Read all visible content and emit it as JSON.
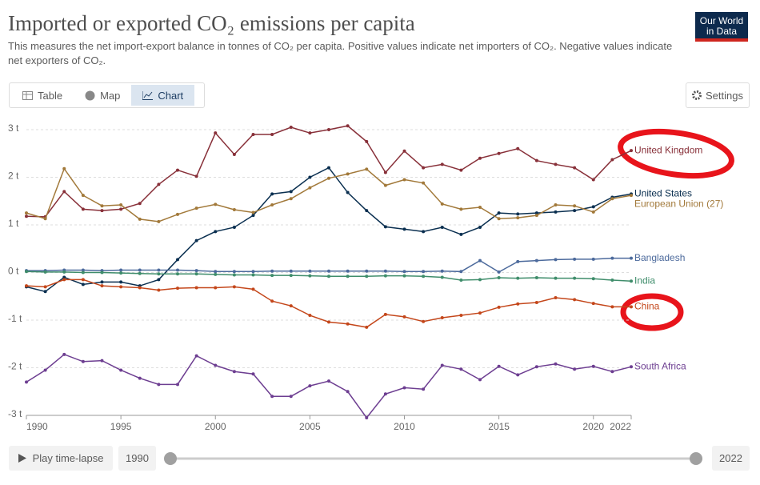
{
  "chart_data": {
    "type": "line",
    "title": "Imported or exported CO₂ emissions per capita",
    "subtitle": "This measures the net import-export balance in tonnes of CO₂ per capita. Positive values indicate net importers of CO₂. Negative values indicate net exporters of CO₂.",
    "x": [
      1990,
      1991,
      1992,
      1993,
      1994,
      1995,
      1996,
      1997,
      1998,
      1999,
      2000,
      2001,
      2002,
      2003,
      2004,
      2005,
      2006,
      2007,
      2008,
      2009,
      2010,
      2011,
      2012,
      2013,
      2014,
      2015,
      2016,
      2017,
      2018,
      2019,
      2020,
      2021,
      2022
    ],
    "xlim": [
      1990,
      2022
    ],
    "xticks": [
      1990,
      1995,
      2000,
      2005,
      2010,
      2015,
      2020,
      2022
    ],
    "ylim": [
      -3,
      3
    ],
    "yticks": [
      {
        "value": 3,
        "label": "3 t"
      },
      {
        "value": 2,
        "label": "2 t"
      },
      {
        "value": 1,
        "label": "1 t"
      },
      {
        "value": 0,
        "label": "0 t"
      },
      {
        "value": -1,
        "label": "-1 t"
      },
      {
        "value": -2,
        "label": "-2 t"
      },
      {
        "value": -3,
        "label": "-3 t"
      }
    ],
    "grid": true,
    "series": [
      {
        "name": "United Kingdom",
        "color": "#883039",
        "values": [
          1.18,
          1.17,
          1.7,
          1.33,
          1.3,
          1.33,
          1.45,
          1.85,
          2.15,
          2.02,
          2.93,
          2.48,
          2.9,
          2.9,
          3.05,
          2.93,
          3.0,
          3.08,
          2.75,
          2.1,
          2.55,
          2.2,
          2.27,
          2.15,
          2.4,
          2.5,
          2.6,
          2.35,
          2.27,
          2.2,
          1.95,
          2.37,
          2.56
        ]
      },
      {
        "name": "United States",
        "color": "#0a2f50",
        "values": [
          -0.3,
          -0.4,
          -0.1,
          -0.25,
          -0.2,
          -0.2,
          -0.28,
          -0.15,
          0.27,
          0.67,
          0.86,
          0.95,
          1.2,
          1.65,
          1.7,
          2.0,
          2.2,
          1.68,
          1.3,
          0.96,
          0.91,
          0.86,
          0.95,
          0.8,
          0.95,
          1.25,
          1.23,
          1.25,
          1.27,
          1.3,
          1.38,
          1.58,
          1.65
        ]
      },
      {
        "name": "European Union (27)",
        "color": "#a2793a",
        "values": [
          1.25,
          1.13,
          2.18,
          1.62,
          1.4,
          1.42,
          1.12,
          1.07,
          1.22,
          1.35,
          1.43,
          1.32,
          1.26,
          1.42,
          1.55,
          1.78,
          1.98,
          2.07,
          2.17,
          1.83,
          1.95,
          1.88,
          1.44,
          1.33,
          1.37,
          1.13,
          1.15,
          1.2,
          1.42,
          1.4,
          1.27,
          1.55,
          1.62
        ]
      },
      {
        "name": "Bangladesh",
        "color": "#4c6a9c",
        "values": [
          0.04,
          0.04,
          0.05,
          0.05,
          0.04,
          0.05,
          0.05,
          0.05,
          0.05,
          0.04,
          0.02,
          0.02,
          0.02,
          0.03,
          0.03,
          0.03,
          0.03,
          0.03,
          0.03,
          0.03,
          0.02,
          0.02,
          0.03,
          0.02,
          0.25,
          0.01,
          0.23,
          0.25,
          0.27,
          0.28,
          0.28,
          0.3,
          0.3
        ]
      },
      {
        "name": "India",
        "color": "#3f8d6b",
        "values": [
          0.02,
          0.01,
          0.01,
          0.0,
          0.0,
          -0.01,
          -0.02,
          -0.03,
          -0.03,
          -0.03,
          -0.04,
          -0.05,
          -0.05,
          -0.06,
          -0.06,
          -0.07,
          -0.08,
          -0.08,
          -0.08,
          -0.07,
          -0.07,
          -0.08,
          -0.1,
          -0.16,
          -0.15,
          -0.11,
          -0.12,
          -0.11,
          -0.12,
          -0.12,
          -0.13,
          -0.16,
          -0.18
        ]
      },
      {
        "name": "China",
        "color": "#c4471b",
        "values": [
          -0.28,
          -0.3,
          -0.15,
          -0.15,
          -0.28,
          -0.3,
          -0.32,
          -0.37,
          -0.33,
          -0.32,
          -0.32,
          -0.3,
          -0.35,
          -0.6,
          -0.7,
          -0.9,
          -1.04,
          -1.08,
          -1.15,
          -0.88,
          -0.93,
          -1.03,
          -0.95,
          -0.9,
          -0.85,
          -0.73,
          -0.66,
          -0.63,
          -0.53,
          -0.57,
          -0.65,
          -0.72,
          -0.72
        ]
      },
      {
        "name": "South Africa",
        "color": "#6d3e91",
        "values": [
          -2.3,
          -2.05,
          -1.72,
          -1.87,
          -1.85,
          -2.05,
          -2.22,
          -2.35,
          -2.35,
          -1.75,
          -1.95,
          -2.08,
          -2.13,
          -2.6,
          -2.6,
          -2.38,
          -2.28,
          -2.5,
          -3.05,
          -2.55,
          -2.42,
          -2.45,
          -1.95,
          -2.03,
          -2.25,
          -1.97,
          -2.15,
          -1.98,
          -1.92,
          -2.03,
          -1.97,
          -2.08,
          -1.98
        ]
      }
    ]
  },
  "ui": {
    "logo": [
      "Our World",
      "in Data"
    ],
    "tabs": [
      "Table",
      "Map",
      "Chart"
    ],
    "settings": "Settings",
    "play": "Play time-lapse",
    "timeline_start": 1990,
    "timeline_end": 2022
  }
}
